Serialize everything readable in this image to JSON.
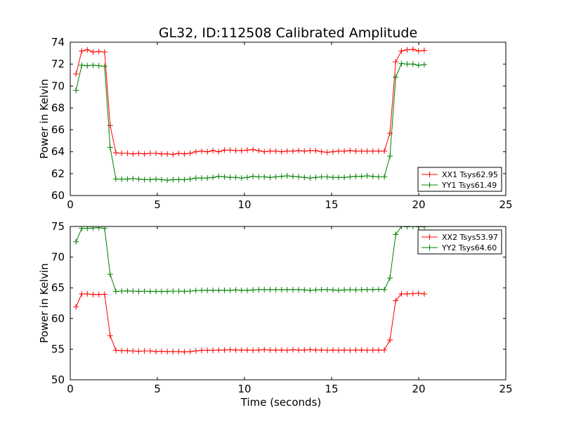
{
  "figure_title": "GL32, ID:112508 Calibrated Amplitude",
  "chart_data": [
    {
      "type": "line",
      "title": "GL32, ID:112508 Calibrated Amplitude",
      "xlabel": "",
      "ylabel": "Power in Kelvin",
      "xlim": [
        0,
        25
      ],
      "ylim": [
        60,
        74
      ],
      "xticks": [
        "0",
        "5",
        "10",
        "15",
        "20",
        "25"
      ],
      "yticks": [
        "60",
        "62",
        "64",
        "66",
        "68",
        "70",
        "72",
        "74"
      ],
      "grid": false,
      "legend_position": "lower-right",
      "x": [
        0.33,
        0.66,
        0.98,
        1.31,
        1.64,
        1.97,
        2.29,
        2.62,
        2.95,
        3.28,
        3.6,
        3.93,
        4.26,
        4.59,
        4.92,
        5.24,
        5.57,
        5.9,
        6.23,
        6.55,
        6.88,
        7.21,
        7.54,
        7.87,
        8.19,
        8.52,
        8.85,
        9.18,
        9.5,
        9.83,
        10.16,
        10.49,
        10.82,
        11.14,
        11.47,
        11.8,
        12.13,
        12.45,
        12.78,
        13.11,
        13.44,
        13.77,
        14.09,
        14.42,
        14.75,
        15.08,
        15.4,
        15.73,
        16.06,
        16.39,
        16.72,
        17.04,
        17.37,
        17.7,
        18.03,
        18.35,
        18.68,
        19.01,
        19.34,
        19.67,
        19.99,
        20.32
      ],
      "series": [
        {
          "name": "XX1 Tsys62.95",
          "color": "#ff0000",
          "values": [
            71.1,
            73.2,
            73.3,
            73.1,
            73.15,
            73.1,
            66.4,
            63.9,
            63.85,
            63.85,
            63.8,
            63.85,
            63.8,
            63.85,
            63.85,
            63.8,
            63.8,
            63.75,
            63.85,
            63.8,
            63.85,
            64.0,
            64.05,
            64.0,
            64.1,
            64.0,
            64.15,
            64.15,
            64.1,
            64.1,
            64.15,
            64.2,
            64.1,
            64.0,
            64.05,
            64.05,
            64.0,
            64.05,
            64.05,
            64.1,
            64.05,
            64.1,
            64.1,
            64.0,
            63.95,
            64.0,
            64.05,
            64.05,
            64.1,
            64.05,
            64.05,
            64.05,
            64.05,
            64.05,
            64.05,
            65.7,
            72.2,
            73.2,
            73.3,
            73.35,
            73.2,
            73.25
          ]
        },
        {
          "name": "YY1 Tsys61.49",
          "color": "#008000",
          "values": [
            69.6,
            71.9,
            71.85,
            71.9,
            71.85,
            71.8,
            64.4,
            61.5,
            61.5,
            61.5,
            61.55,
            61.5,
            61.45,
            61.45,
            61.5,
            61.45,
            61.4,
            61.45,
            61.45,
            61.45,
            61.5,
            61.6,
            61.6,
            61.6,
            61.65,
            61.75,
            61.7,
            61.65,
            61.65,
            61.6,
            61.65,
            61.75,
            61.7,
            61.7,
            61.65,
            61.7,
            61.75,
            61.8,
            61.75,
            61.7,
            61.65,
            61.6,
            61.65,
            61.7,
            61.7,
            61.65,
            61.65,
            61.65,
            61.7,
            61.75,
            61.75,
            61.8,
            61.75,
            61.7,
            61.7,
            63.6,
            70.8,
            72.05,
            72.0,
            72.0,
            71.9,
            71.95
          ]
        }
      ]
    },
    {
      "type": "line",
      "title": "",
      "xlabel": "Time (seconds)",
      "ylabel": "Power in Kelvin",
      "xlim": [
        0,
        25
      ],
      "ylim": [
        50,
        75
      ],
      "xticks": [
        "0",
        "5",
        "10",
        "15",
        "20",
        "25"
      ],
      "yticks": [
        "50",
        "55",
        "60",
        "65",
        "70",
        "75"
      ],
      "grid": false,
      "legend_position": "upper-right",
      "x": [
        0.33,
        0.66,
        0.98,
        1.31,
        1.64,
        1.97,
        2.29,
        2.62,
        2.95,
        3.28,
        3.6,
        3.93,
        4.26,
        4.59,
        4.92,
        5.24,
        5.57,
        5.9,
        6.23,
        6.55,
        6.88,
        7.21,
        7.54,
        7.87,
        8.19,
        8.52,
        8.85,
        9.18,
        9.5,
        9.83,
        10.16,
        10.49,
        10.82,
        11.14,
        11.47,
        11.8,
        12.13,
        12.45,
        12.78,
        13.11,
        13.44,
        13.77,
        14.09,
        14.42,
        14.75,
        15.08,
        15.4,
        15.73,
        16.06,
        16.39,
        16.72,
        17.04,
        17.37,
        17.7,
        18.03,
        18.35,
        18.68,
        19.01,
        19.34,
        19.67,
        19.99,
        20.32
      ],
      "series": [
        {
          "name": "XX2 Tsys53.97",
          "color": "#ff0000",
          "values": [
            61.9,
            64.0,
            64.0,
            63.9,
            63.9,
            63.95,
            57.2,
            54.8,
            54.75,
            54.75,
            54.7,
            54.65,
            54.7,
            54.7,
            54.6,
            54.65,
            54.6,
            54.6,
            54.6,
            54.55,
            54.6,
            54.7,
            54.8,
            54.8,
            54.8,
            54.85,
            54.85,
            54.9,
            54.85,
            54.85,
            54.85,
            54.8,
            54.85,
            54.9,
            54.85,
            54.85,
            54.85,
            54.8,
            54.9,
            54.85,
            54.85,
            54.9,
            54.85,
            54.85,
            54.8,
            54.85,
            54.8,
            54.85,
            54.8,
            54.85,
            54.85,
            54.8,
            54.85,
            54.85,
            54.85,
            56.5,
            62.9,
            64.0,
            64.0,
            64.05,
            64.1,
            64.0
          ]
        },
        {
          "name": "YY2 Tsys64.60",
          "color": "#008000",
          "values": [
            72.5,
            74.7,
            74.7,
            74.75,
            74.8,
            74.7,
            67.2,
            64.4,
            64.45,
            64.5,
            64.45,
            64.4,
            64.45,
            64.4,
            64.4,
            64.4,
            64.4,
            64.45,
            64.45,
            64.4,
            64.45,
            64.55,
            64.6,
            64.6,
            64.6,
            64.6,
            64.6,
            64.6,
            64.65,
            64.6,
            64.6,
            64.65,
            64.7,
            64.7,
            64.7,
            64.7,
            64.7,
            64.7,
            64.7,
            64.7,
            64.65,
            64.6,
            64.65,
            64.7,
            64.7,
            64.65,
            64.6,
            64.65,
            64.7,
            64.65,
            64.7,
            64.7,
            64.7,
            64.75,
            64.7,
            66.6,
            73.7,
            75.0,
            74.95,
            75.0,
            74.95,
            74.95
          ]
        }
      ]
    }
  ]
}
